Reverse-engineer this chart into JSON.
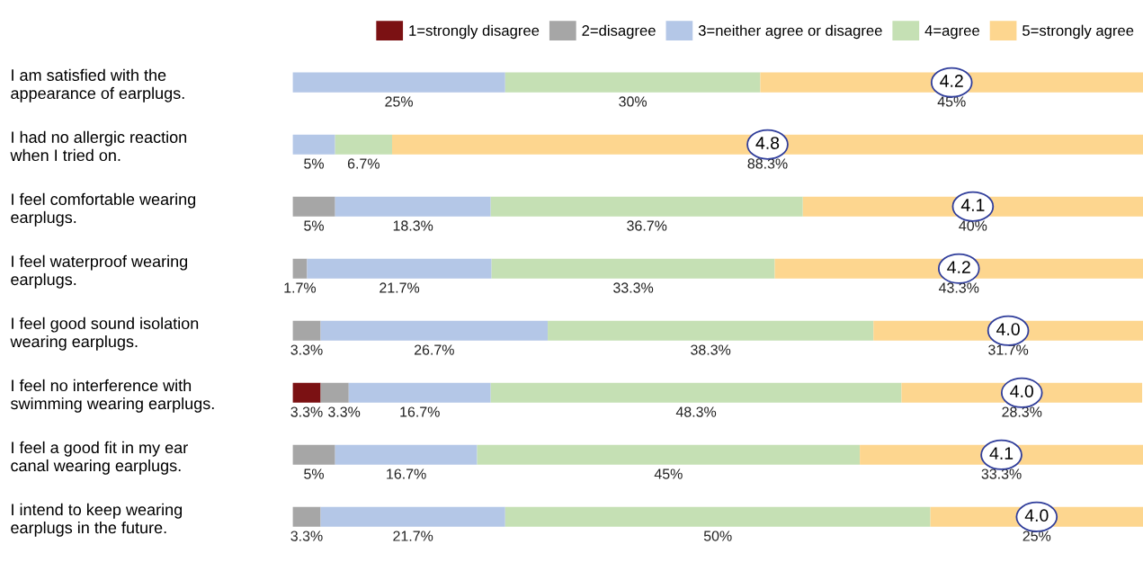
{
  "chart_data": {
    "type": "bar",
    "orientation": "horizontal",
    "stacked": true,
    "legend": "top",
    "grid": false,
    "tick_labels": "y",
    "xlim": [
      0,
      100
    ],
    "categories": [
      "I am satisfied with the\nappearance of earplugs.",
      "I had no allergic reaction\nwhen I tried on.",
      "I feel comfortable wearing\nearplugs.",
      "I feel waterproof wearing\nearplugs.",
      "I feel good sound isolation\nwearing earplugs.",
      "I feel no interference with\nswimming wearing earplugs.",
      "I feel a good fit in my ear\ncanal wearing earplugs.",
      "I intend to keep wearing\nearplugs in the future."
    ],
    "series": [
      {
        "name": "1=strongly disagree",
        "color": "#7b1113",
        "values": [
          0,
          0,
          0,
          0,
          0,
          3.3,
          0,
          0
        ],
        "value_labels": [
          null,
          null,
          null,
          null,
          null,
          "3.3%",
          null,
          null
        ]
      },
      {
        "name": "2=disagree",
        "color": "#a6a6a6",
        "values": [
          0,
          0,
          5,
          1.7,
          3.3,
          3.3,
          5,
          3.3
        ],
        "value_labels": [
          null,
          null,
          "5%",
          "1.7%",
          "3.3%",
          "3.3%",
          "5%",
          "3.3%"
        ]
      },
      {
        "name": "3=neither agree or disagree",
        "color": "#b4c7e7",
        "values": [
          25,
          5,
          18.3,
          21.7,
          26.7,
          16.7,
          16.7,
          21.7
        ],
        "value_labels": [
          "25%",
          "5%",
          "18.3%",
          "21.7%",
          "26.7%",
          "16.7%",
          "16.7%",
          "21.7%"
        ]
      },
      {
        "name": "4=agree",
        "color": "#c5e0b4",
        "values": [
          30,
          6.7,
          36.7,
          33.3,
          38.3,
          48.3,
          45,
          50
        ],
        "value_labels": [
          "30%",
          "6.7%",
          "36.7%",
          "33.3%",
          "38.3%",
          "48.3%",
          "45%",
          "50%"
        ]
      },
      {
        "name": "5=strongly agree",
        "color": "#fdd68f",
        "values": [
          45,
          88.3,
          40,
          43.3,
          31.7,
          28.3,
          33.3,
          25
        ],
        "value_labels": [
          "45%",
          "88.3%",
          "40%",
          "43.3%",
          "31.7%",
          "28.3%",
          "33.3%",
          "25%"
        ]
      }
    ],
    "annotations": [
      "4.2",
      "4.8",
      "4.1",
      "4.2",
      "4.0",
      "4.0",
      "4.1",
      "4.0"
    ]
  }
}
